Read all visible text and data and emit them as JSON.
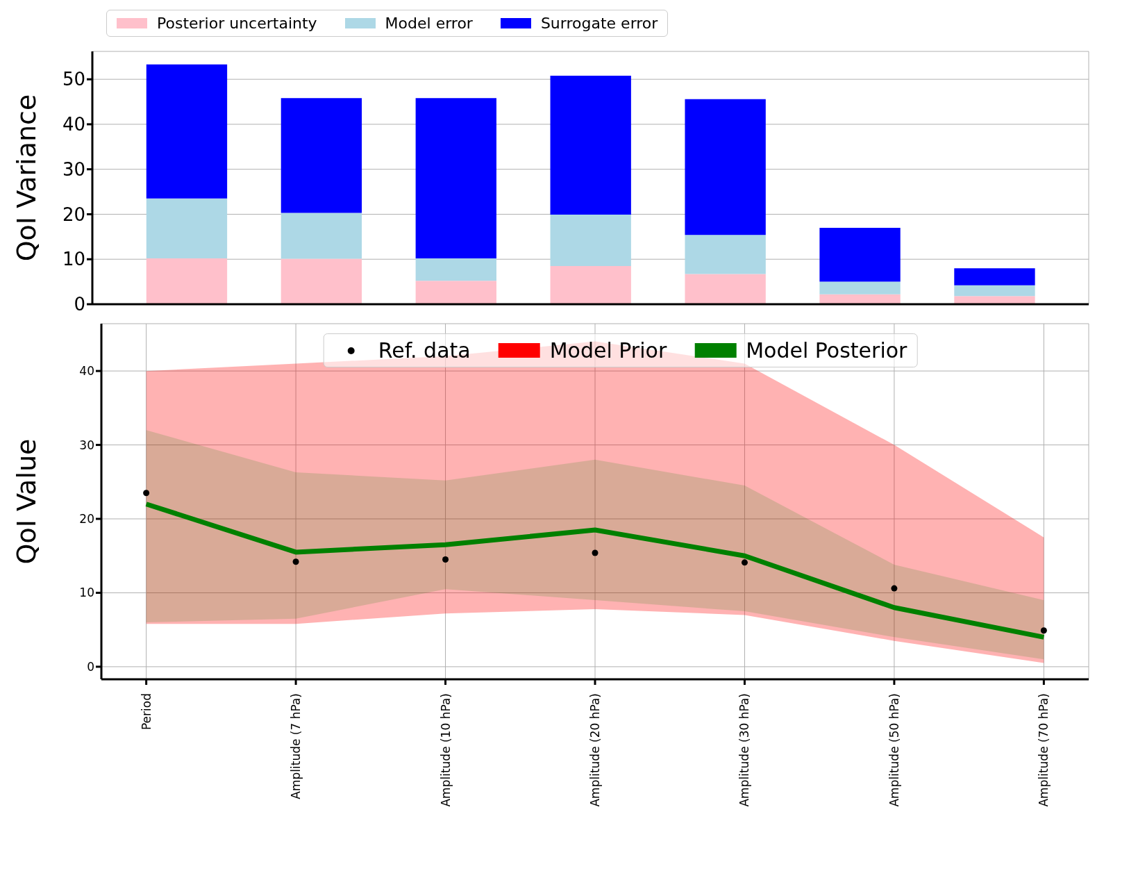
{
  "chart_data": [
    {
      "type": "bar",
      "stacked": true,
      "ylabel": "QoI Variance",
      "categories": [
        null,
        null,
        null,
        null,
        null,
        null,
        null
      ],
      "series": [
        {
          "name": "Posterior uncertainty",
          "color": "#ffc0cb",
          "values": [
            10.2,
            10.1,
            5.2,
            8.5,
            6.7,
            2.2,
            1.8
          ]
        },
        {
          "name": "Model error",
          "color": "#add8e6",
          "values": [
            13.3,
            10.2,
            5.0,
            11.4,
            8.7,
            2.8,
            2.4
          ]
        },
        {
          "name": "Surrogate error",
          "color": "#0000ff",
          "values": [
            29.8,
            25.5,
            35.6,
            30.9,
            30.2,
            12.0,
            3.8
          ]
        }
      ],
      "ylim": [
        0,
        56.2
      ],
      "yticks": [
        0,
        10,
        20,
        30,
        40,
        50
      ],
      "grid": true,
      "legend": "top left",
      "tick_labels": "y"
    },
    {
      "type": "line",
      "ylabel": "QoI Value",
      "categories": [
        "Period",
        "Amplitude (7 hPa)",
        "Amplitude (10 hPa)",
        "Amplitude (20 hPa)",
        "Amplitude (30 hPa)",
        "Amplitude (50 hPa)",
        "Amplitude (70 hPa)"
      ],
      "series": [
        {
          "name": "Ref. data",
          "type": "scatter",
          "color": "#000000",
          "values": [
            23.5,
            14.2,
            14.5,
            15.4,
            14.1,
            10.6,
            4.9
          ]
        },
        {
          "name": "Model Prior",
          "type": "area",
          "color": "#ff0000",
          "values": [
            null,
            null,
            null,
            null,
            null,
            null,
            null
          ],
          "lower": [
            5.8,
            5.8,
            7.2,
            7.8,
            7.0,
            3.5,
            0.5
          ],
          "upper": [
            40,
            41,
            42,
            44,
            41,
            30,
            17.5
          ]
        },
        {
          "name": "Model Posterior",
          "type": "line",
          "color": "#008000",
          "values": [
            22,
            15.5,
            16.5,
            18.5,
            15,
            8,
            4
          ],
          "lower": [
            6,
            6.5,
            10.5,
            9,
            7.5,
            4,
            1
          ],
          "upper": [
            32,
            26.3,
            25.2,
            28,
            24.5,
            13.8,
            9
          ]
        }
      ],
      "ylim": [
        -1.7,
        46.4
      ],
      "yticks": [
        0,
        10,
        20,
        30,
        40
      ],
      "grid": true,
      "legend": "top"
    }
  ]
}
